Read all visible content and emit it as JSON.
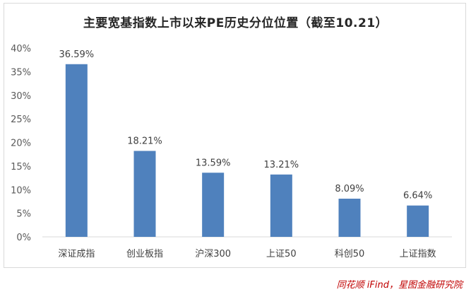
{
  "chart_data": {
    "type": "bar",
    "title": "主要宽基指数上市以来PE历史分位位置（截至10.21）",
    "categories": [
      "深证成指",
      "创业板指",
      "沪深300",
      "上证50",
      "科创50",
      "上证指数"
    ],
    "values": [
      36.59,
      18.21,
      13.59,
      13.21,
      8.09,
      6.64
    ],
    "data_labels": [
      "36.59%",
      "18.21%",
      "13.59%",
      "13.21%",
      "8.09%",
      "6.64%"
    ],
    "ylim": [
      0,
      40
    ],
    "yticks": [
      "0%",
      "5%",
      "10%",
      "15%",
      "20%",
      "25%",
      "30%",
      "35%",
      "40%"
    ],
    "xlabel": "",
    "ylabel": "",
    "grid": false,
    "legend": "none",
    "bar_color": "#4f81bd"
  },
  "source": "同花顺 iFind，星图金融研究院"
}
